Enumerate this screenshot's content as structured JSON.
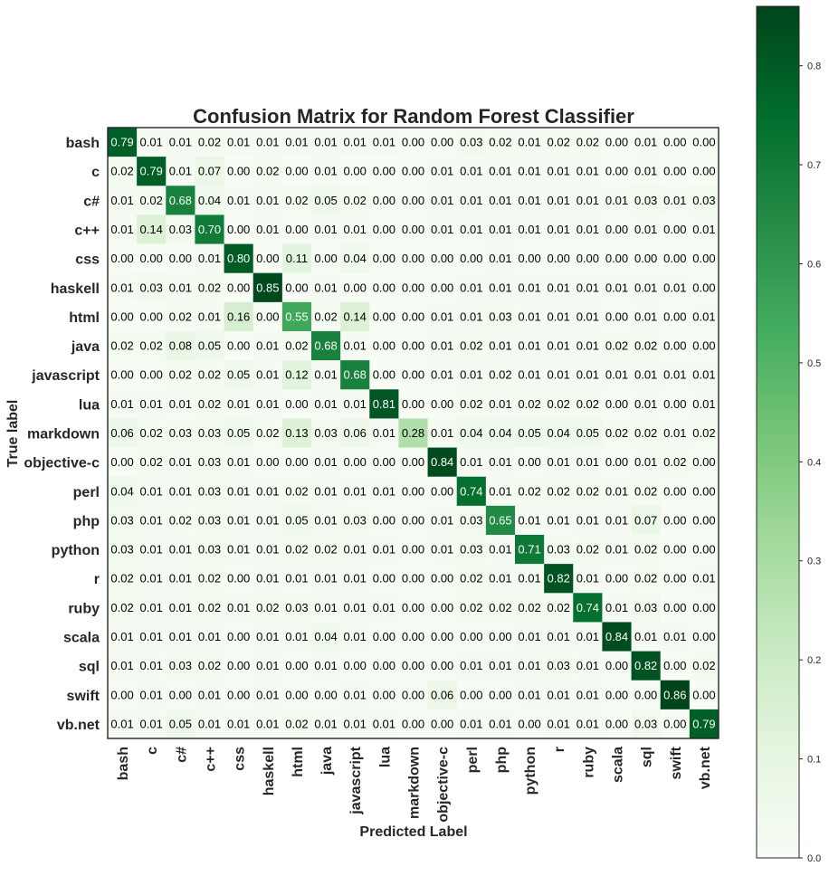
{
  "chart_data": {
    "type": "heatmap",
    "title": "Confusion Matrix for Random Forest Classifier",
    "xlabel": "Predicted Label",
    "ylabel": "True label",
    "labels": [
      "bash",
      "c",
      "c#",
      "c++",
      "css",
      "haskell",
      "html",
      "java",
      "javascript",
      "lua",
      "markdown",
      "objective-c",
      "perl",
      "php",
      "python",
      "r",
      "ruby",
      "scala",
      "sql",
      "swift",
      "vb.net"
    ],
    "matrix": [
      [
        0.79,
        0.01,
        0.01,
        0.02,
        0.01,
        0.01,
        0.01,
        0.01,
        0.01,
        0.01,
        0.0,
        0.0,
        0.03,
        0.02,
        0.01,
        0.02,
        0.02,
        0.0,
        0.01,
        0.0,
        0.0
      ],
      [
        0.02,
        0.79,
        0.01,
        0.07,
        0.0,
        0.02,
        0.0,
        0.01,
        0.0,
        0.0,
        0.0,
        0.01,
        0.01,
        0.01,
        0.01,
        0.01,
        0.01,
        0.0,
        0.01,
        0.0,
        0.0
      ],
      [
        0.01,
        0.02,
        0.68,
        0.04,
        0.01,
        0.01,
        0.02,
        0.05,
        0.02,
        0.0,
        0.0,
        0.01,
        0.01,
        0.01,
        0.01,
        0.01,
        0.01,
        0.01,
        0.03,
        0.01,
        0.03
      ],
      [
        0.01,
        0.14,
        0.03,
        0.7,
        0.0,
        0.01,
        0.0,
        0.01,
        0.01,
        0.0,
        0.0,
        0.01,
        0.01,
        0.01,
        0.01,
        0.01,
        0.01,
        0.0,
        0.01,
        0.0,
        0.01
      ],
      [
        0.0,
        0.0,
        0.0,
        0.01,
        0.8,
        0.0,
        0.11,
        0.0,
        0.04,
        0.0,
        0.0,
        0.0,
        0.0,
        0.01,
        0.0,
        0.0,
        0.0,
        0.0,
        0.0,
        0.0,
        0.0
      ],
      [
        0.01,
        0.03,
        0.01,
        0.02,
        0.0,
        0.85,
        0.0,
        0.01,
        0.0,
        0.0,
        0.0,
        0.0,
        0.01,
        0.01,
        0.01,
        0.01,
        0.01,
        0.01,
        0.01,
        0.01,
        0.0
      ],
      [
        0.0,
        0.0,
        0.02,
        0.01,
        0.16,
        0.0,
        0.55,
        0.02,
        0.14,
        0.0,
        0.0,
        0.01,
        0.01,
        0.03,
        0.01,
        0.01,
        0.01,
        0.0,
        0.01,
        0.0,
        0.01
      ],
      [
        0.02,
        0.02,
        0.08,
        0.05,
        0.0,
        0.01,
        0.02,
        0.68,
        0.01,
        0.0,
        0.0,
        0.01,
        0.02,
        0.01,
        0.01,
        0.01,
        0.01,
        0.02,
        0.02,
        0.0,
        0.0
      ],
      [
        0.0,
        0.0,
        0.02,
        0.02,
        0.05,
        0.01,
        0.12,
        0.01,
        0.68,
        0.0,
        0.0,
        0.01,
        0.01,
        0.02,
        0.01,
        0.01,
        0.01,
        0.01,
        0.01,
        0.01,
        0.01
      ],
      [
        0.01,
        0.01,
        0.01,
        0.02,
        0.01,
        0.01,
        0.0,
        0.01,
        0.01,
        0.81,
        0.0,
        0.0,
        0.02,
        0.01,
        0.02,
        0.02,
        0.02,
        0.0,
        0.01,
        0.0,
        0.01
      ],
      [
        0.06,
        0.02,
        0.03,
        0.03,
        0.05,
        0.02,
        0.13,
        0.03,
        0.06,
        0.01,
        0.28,
        0.01,
        0.04,
        0.04,
        0.05,
        0.04,
        0.05,
        0.02,
        0.02,
        0.01,
        0.02
      ],
      [
        0.0,
        0.02,
        0.01,
        0.03,
        0.01,
        0.0,
        0.0,
        0.01,
        0.0,
        0.0,
        0.0,
        0.84,
        0.01,
        0.01,
        0.0,
        0.01,
        0.01,
        0.0,
        0.01,
        0.02,
        0.0
      ],
      [
        0.04,
        0.01,
        0.01,
        0.03,
        0.01,
        0.01,
        0.02,
        0.01,
        0.01,
        0.01,
        0.0,
        0.0,
        0.74,
        0.01,
        0.02,
        0.02,
        0.02,
        0.01,
        0.02,
        0.0,
        0.0
      ],
      [
        0.03,
        0.01,
        0.02,
        0.03,
        0.01,
        0.01,
        0.05,
        0.01,
        0.03,
        0.0,
        0.0,
        0.01,
        0.03,
        0.65,
        0.01,
        0.01,
        0.01,
        0.01,
        0.07,
        0.0,
        0.0
      ],
      [
        0.03,
        0.01,
        0.01,
        0.03,
        0.01,
        0.01,
        0.02,
        0.02,
        0.01,
        0.01,
        0.0,
        0.01,
        0.03,
        0.01,
        0.71,
        0.03,
        0.02,
        0.01,
        0.02,
        0.0,
        0.0
      ],
      [
        0.02,
        0.01,
        0.01,
        0.02,
        0.0,
        0.01,
        0.01,
        0.01,
        0.01,
        0.0,
        0.0,
        0.0,
        0.02,
        0.01,
        0.01,
        0.82,
        0.01,
        0.0,
        0.02,
        0.0,
        0.01
      ],
      [
        0.02,
        0.01,
        0.01,
        0.02,
        0.01,
        0.02,
        0.03,
        0.01,
        0.01,
        0.01,
        0.0,
        0.0,
        0.02,
        0.02,
        0.02,
        0.02,
        0.74,
        0.01,
        0.03,
        0.0,
        0.0
      ],
      [
        0.01,
        0.01,
        0.01,
        0.01,
        0.0,
        0.01,
        0.01,
        0.04,
        0.01,
        0.0,
        0.0,
        0.0,
        0.0,
        0.0,
        0.01,
        0.01,
        0.01,
        0.84,
        0.01,
        0.01,
        0.0
      ],
      [
        0.01,
        0.01,
        0.03,
        0.02,
        0.0,
        0.01,
        0.0,
        0.01,
        0.0,
        0.0,
        0.0,
        0.0,
        0.01,
        0.01,
        0.01,
        0.03,
        0.01,
        0.0,
        0.82,
        0.0,
        0.02
      ],
      [
        0.0,
        0.01,
        0.0,
        0.01,
        0.0,
        0.01,
        0.0,
        0.0,
        0.01,
        0.0,
        0.0,
        0.06,
        0.0,
        0.0,
        0.01,
        0.01,
        0.01,
        0.0,
        0.0,
        0.86,
        0.0
      ],
      [
        0.01,
        0.01,
        0.05,
        0.01,
        0.01,
        0.01,
        0.02,
        0.01,
        0.01,
        0.01,
        0.0,
        0.0,
        0.01,
        0.01,
        0.0,
        0.01,
        0.01,
        0.0,
        0.03,
        0.0,
        0.79
      ]
    ],
    "value_format": "0.00",
    "colormap": "Greens",
    "color_low": "#f7fcf5",
    "color_high": "#00441b",
    "text_color_light": "#ffffff",
    "text_color_dark": "#000000",
    "vmin": 0.0,
    "vmax": 0.86,
    "colorbar_ticks": [
      "0.0",
      "0.1",
      "0.2",
      "0.3",
      "0.4",
      "0.5",
      "0.6",
      "0.7",
      "0.8"
    ],
    "grid": false,
    "colorbar_position": "right"
  }
}
